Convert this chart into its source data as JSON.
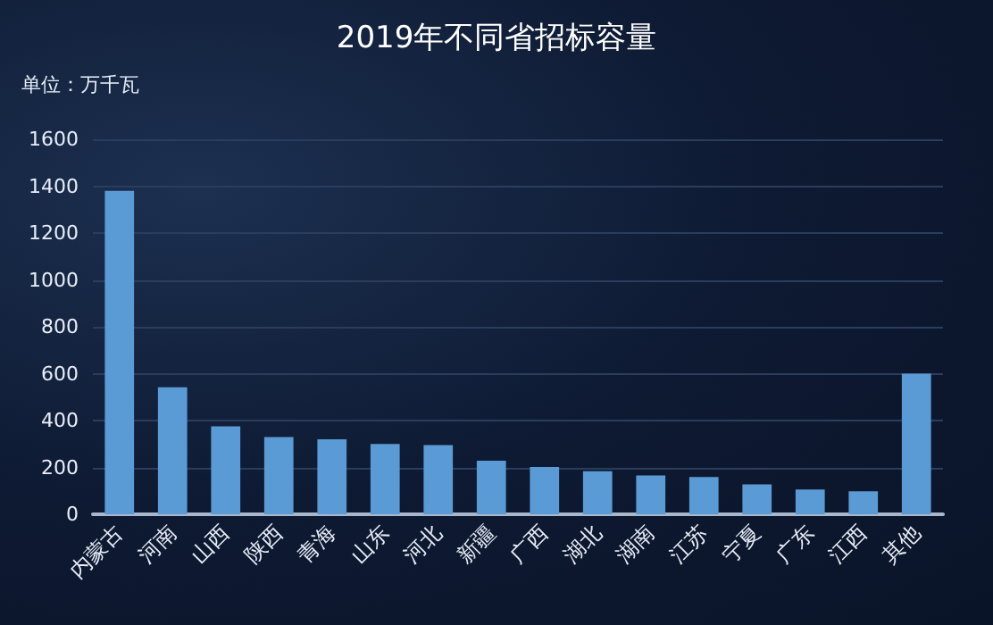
{
  "chart_data": {
    "type": "bar",
    "title": "2019年不同省招标容量",
    "ylabel": "单位：万千瓦",
    "categories": [
      "内蒙古",
      "河南",
      "山西",
      "陕西",
      "青海",
      "山东",
      "河北",
      "新疆",
      "广西",
      "湖北",
      "湖南",
      "江苏",
      "宁夏",
      "广东",
      "江西",
      "其他"
    ],
    "values": [
      1380,
      542,
      375,
      330,
      320,
      300,
      295,
      229,
      202,
      184,
      166,
      159,
      128,
      106,
      98,
      600
    ],
    "color": "#5b9bd5",
    "ylim": [
      0,
      1600
    ],
    "yticks": [
      0,
      200,
      400,
      600,
      800,
      1000,
      1200,
      1400,
      1600
    ],
    "grid": true
  }
}
